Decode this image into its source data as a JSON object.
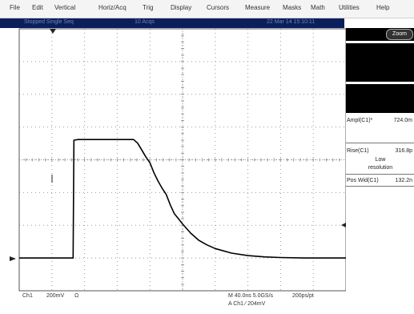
{
  "menu": {
    "items": [
      "File",
      "Edit",
      "Vertical",
      "Horiz/Acq",
      "Trig",
      "Display",
      "Cursors",
      "Measure",
      "Masks",
      "Math",
      "Utilities",
      "Help"
    ]
  },
  "status": {
    "mode": "Stopped  Single Seq",
    "acqs": "10 Acqs",
    "datetime": "22 Mar 14  15:10:11"
  },
  "zoom_button": "Zoom",
  "measurements": {
    "ampl_label": "Ampl(C1)*",
    "ampl_value": "724.0m",
    "rise_label": "Rise(C1)",
    "rise_value": "316.8p",
    "rise_note_1": "Low",
    "rise_note_2": "resolution",
    "posw_label": "Pos Wid(C1)",
    "posw_value": "132.2n"
  },
  "readout": {
    "channel": "Ch1",
    "scale": "200mV",
    "coupling": "Ω",
    "timebase": "M 40.0ns 5.0GS/s",
    "resolution": "200ps/pt",
    "trigger": "A Ch1  ⁄  204mV"
  },
  "colors": {
    "grid": "#999999",
    "trace": "#000000",
    "statusbar": "#0a1f5c"
  },
  "chart_data": {
    "type": "line",
    "x_unit": "ns",
    "y_unit": "mV",
    "xlim": [
      -200,
      200
    ],
    "ylim": [
      -800,
      800
    ],
    "series": [
      {
        "x": [
          -200,
          -170,
          -134,
          -133,
          -128,
          -110,
          -90,
          -70,
          -60,
          -55,
          -50,
          -45,
          -40,
          -35,
          -30,
          -25,
          -20,
          -15,
          -10,
          -5,
          0,
          10,
          20,
          30,
          40,
          60,
          80,
          100,
          120,
          150,
          180,
          200
        ],
        "y": [
          -600,
          -600,
          -600,
          120,
          124,
          124,
          124,
          124,
          124,
          102,
          60,
          18,
          -18,
          -80,
          -130,
          -174,
          -212,
          -276,
          -330,
          -360,
          -392,
          -448,
          -492,
          -520,
          -542,
          -570,
          -585,
          -593,
          -597,
          -600,
          -600,
          -600
        ]
      }
    ]
  }
}
